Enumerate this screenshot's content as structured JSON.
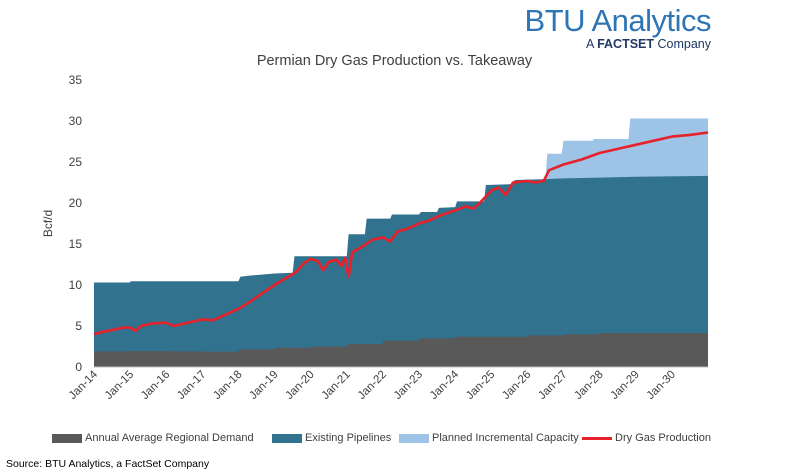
{
  "branding": {
    "main": "BTU Analytics",
    "sub_prefix": "A ",
    "sub_bold": "FACTSET",
    "sub_suffix": " Company"
  },
  "source": "Source: BTU Analytics, a FactSet Company",
  "colors": {
    "demand": "#595959",
    "pipelines": "#31738e",
    "planned": "#9dc3e6",
    "production": "#e8202a",
    "axis": "#bfbfbf"
  },
  "chart_data": {
    "type": "area",
    "title": "Permian Dry Gas Production vs. Takeaway",
    "ylabel": "Bcf/d",
    "xlabel": "",
    "ylim": [
      0,
      35
    ],
    "yticks": [
      0,
      5,
      10,
      15,
      20,
      25,
      30,
      35
    ],
    "xlim": [
      2014.0,
      2031.0
    ],
    "xticks": [
      {
        "x": 2014,
        "label": "Jan-14"
      },
      {
        "x": 2015,
        "label": "Jan-15"
      },
      {
        "x": 2016,
        "label": "Jan-16"
      },
      {
        "x": 2017,
        "label": "Jan-17"
      },
      {
        "x": 2018,
        "label": "Jan-18"
      },
      {
        "x": 2019,
        "label": "Jan-19"
      },
      {
        "x": 2020,
        "label": "Jan-20"
      },
      {
        "x": 2021,
        "label": "Jan-21"
      },
      {
        "x": 2022,
        "label": "Jan-22"
      },
      {
        "x": 2023,
        "label": "Jan-23"
      },
      {
        "x": 2024,
        "label": "Jan-24"
      },
      {
        "x": 2025,
        "label": "Jan-25"
      },
      {
        "x": 2026,
        "label": "Jan-26"
      },
      {
        "x": 2027,
        "label": "Jan-27"
      },
      {
        "x": 2028,
        "label": "Jan-28"
      },
      {
        "x": 2029,
        "label": "Jan-29"
      },
      {
        "x": 2030,
        "label": "Jan-30"
      }
    ],
    "series": [
      {
        "name": "Annual Average Regional Demand",
        "kind": "area",
        "points": [
          [
            2014.0,
            1.9
          ],
          [
            2015.0,
            1.9
          ],
          [
            2015.01,
            1.95
          ],
          [
            2016.0,
            1.95
          ],
          [
            2016.01,
            1.9
          ],
          [
            2017.0,
            1.9
          ],
          [
            2017.01,
            1.85
          ],
          [
            2018.0,
            1.85
          ],
          [
            2018.01,
            2.15
          ],
          [
            2019.0,
            2.15
          ],
          [
            2019.01,
            2.35
          ],
          [
            2020.0,
            2.35
          ],
          [
            2020.01,
            2.5
          ],
          [
            2021.0,
            2.5
          ],
          [
            2021.01,
            2.8
          ],
          [
            2022.0,
            2.8
          ],
          [
            2022.01,
            3.2
          ],
          [
            2023.0,
            3.2
          ],
          [
            2023.01,
            3.5
          ],
          [
            2024.0,
            3.5
          ],
          [
            2024.01,
            3.7
          ],
          [
            2025.0,
            3.7
          ],
          [
            2025.01,
            3.7
          ],
          [
            2026.0,
            3.7
          ],
          [
            2026.01,
            3.85
          ],
          [
            2027.0,
            3.85
          ],
          [
            2027.01,
            4.0
          ],
          [
            2028.0,
            4.0
          ],
          [
            2028.01,
            4.15
          ],
          [
            2031.0,
            4.15
          ]
        ]
      },
      {
        "name": "Existing Pipelines",
        "kind": "area",
        "points": [
          [
            2014.0,
            10.3
          ],
          [
            2015.0,
            10.3
          ],
          [
            2015.01,
            10.45
          ],
          [
            2018.0,
            10.45
          ],
          [
            2018.05,
            11.0
          ],
          [
            2018.3,
            11.15
          ],
          [
            2019.0,
            11.4
          ],
          [
            2019.5,
            11.5
          ],
          [
            2019.55,
            13.5
          ],
          [
            2021.0,
            13.5
          ],
          [
            2021.05,
            16.2
          ],
          [
            2021.5,
            16.2
          ],
          [
            2021.55,
            18.1
          ],
          [
            2022.2,
            18.1
          ],
          [
            2022.25,
            18.6
          ],
          [
            2023.0,
            18.6
          ],
          [
            2023.05,
            18.9
          ],
          [
            2023.5,
            18.9
          ],
          [
            2023.55,
            19.4
          ],
          [
            2024.0,
            19.5
          ],
          [
            2024.05,
            20.2
          ],
          [
            2024.8,
            20.2
          ],
          [
            2024.85,
            22.2
          ],
          [
            2025.6,
            22.3
          ],
          [
            2025.65,
            22.8
          ],
          [
            2026.4,
            22.9
          ],
          [
            2027.0,
            23.0
          ],
          [
            2028.0,
            23.1
          ],
          [
            2029.0,
            23.2
          ],
          [
            2031.0,
            23.3
          ]
        ]
      },
      {
        "name": "Planned Incremental Capacity",
        "kind": "area",
        "points": [
          [
            2026.5,
            22.9
          ],
          [
            2026.55,
            26.0
          ],
          [
            2026.95,
            26.0
          ],
          [
            2027.0,
            27.6
          ],
          [
            2027.8,
            27.6
          ],
          [
            2027.85,
            27.8
          ],
          [
            2028.8,
            27.8
          ],
          [
            2028.85,
            30.3
          ],
          [
            2031.0,
            30.3
          ]
        ]
      },
      {
        "name": "Dry Gas Production",
        "kind": "line",
        "points": [
          [
            2014.0,
            4.0
          ],
          [
            2014.25,
            4.3
          ],
          [
            2014.5,
            4.5
          ],
          [
            2014.8,
            4.8
          ],
          [
            2015.0,
            4.8
          ],
          [
            2015.15,
            4.4
          ],
          [
            2015.3,
            5.0
          ],
          [
            2015.6,
            5.3
          ],
          [
            2016.0,
            5.4
          ],
          [
            2016.2,
            5.0
          ],
          [
            2016.5,
            5.3
          ],
          [
            2016.8,
            5.6
          ],
          [
            2017.0,
            5.8
          ],
          [
            2017.3,
            5.7
          ],
          [
            2017.6,
            6.3
          ],
          [
            2018.0,
            7.1
          ],
          [
            2018.3,
            7.9
          ],
          [
            2018.6,
            8.8
          ],
          [
            2019.0,
            10.0
          ],
          [
            2019.3,
            10.8
          ],
          [
            2019.6,
            11.6
          ],
          [
            2019.8,
            12.6
          ],
          [
            2020.0,
            13.2
          ],
          [
            2020.2,
            12.9
          ],
          [
            2020.35,
            11.8
          ],
          [
            2020.5,
            12.8
          ],
          [
            2020.7,
            13.1
          ],
          [
            2020.85,
            12.3
          ],
          [
            2020.95,
            13.3
          ],
          [
            2021.05,
            11.0
          ],
          [
            2021.15,
            14.0
          ],
          [
            2021.4,
            14.6
          ],
          [
            2021.7,
            15.5
          ],
          [
            2022.0,
            15.8
          ],
          [
            2022.2,
            15.3
          ],
          [
            2022.4,
            16.5
          ],
          [
            2022.7,
            16.9
          ],
          [
            2023.0,
            17.5
          ],
          [
            2023.3,
            17.9
          ],
          [
            2023.6,
            18.5
          ],
          [
            2024.0,
            19.1
          ],
          [
            2024.3,
            19.6
          ],
          [
            2024.5,
            19.3
          ],
          [
            2024.7,
            20.1
          ],
          [
            2025.0,
            21.5
          ],
          [
            2025.2,
            21.9
          ],
          [
            2025.4,
            21.0
          ],
          [
            2025.6,
            22.5
          ],
          [
            2025.8,
            22.6
          ],
          [
            2026.0,
            22.7
          ],
          [
            2026.2,
            22.5
          ],
          [
            2026.45,
            22.7
          ],
          [
            2026.6,
            24.0
          ],
          [
            2027.0,
            24.7
          ],
          [
            2027.5,
            25.3
          ],
          [
            2028.0,
            26.1
          ],
          [
            2028.5,
            26.6
          ],
          [
            2029.0,
            27.1
          ],
          [
            2029.5,
            27.6
          ],
          [
            2030.0,
            28.1
          ],
          [
            2030.5,
            28.3
          ],
          [
            2031.0,
            28.6
          ]
        ]
      }
    ],
    "legend": "bottom"
  }
}
